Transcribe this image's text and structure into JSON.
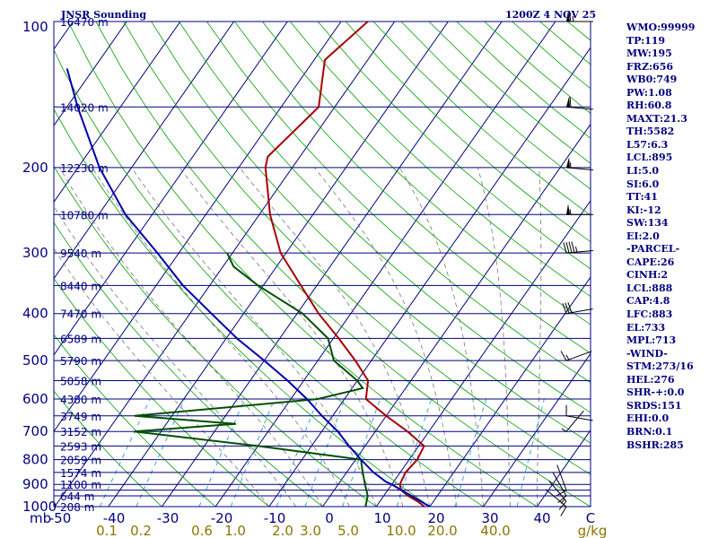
{
  "header": {
    "title": "JNSR Sounding",
    "valid": "1200Z  4 NOV 25"
  },
  "chart_data": {
    "type": "skew-t",
    "title": "JNSR Sounding",
    "valid_time": "1200Z  4 NOV 25",
    "x_unit": "mb",
    "pressure_range": [
      100,
      1000
    ],
    "temperature_range": [
      -50,
      50
    ],
    "pressure_ticks": [
      100,
      200,
      300,
      400,
      500,
      600,
      700,
      800,
      900,
      1000
    ],
    "isobars": [
      100,
      150,
      200,
      250,
      300,
      350,
      400,
      450,
      500,
      550,
      600,
      650,
      700,
      750,
      800,
      850,
      900,
      925,
      950,
      1000
    ],
    "height_labels": [
      {
        "p": 100,
        "label": "16470 m"
      },
      {
        "p": 150,
        "label": "14020 m"
      },
      {
        "p": 200,
        "label": "12230 m"
      },
      {
        "p": 250,
        "label": "10780 m"
      },
      {
        "p": 300,
        "label": "9540 m"
      },
      {
        "p": 350,
        "label": "8440 m"
      },
      {
        "p": 400,
        "label": "7470 m"
      },
      {
        "p": 450,
        "label": "6589 m"
      },
      {
        "p": 500,
        "label": "5790 m"
      },
      {
        "p": 550,
        "label": "5058 m"
      },
      {
        "p": 600,
        "label": "4380 m"
      },
      {
        "p": 650,
        "label": "3749 m"
      },
      {
        "p": 700,
        "label": "3152 m"
      },
      {
        "p": 750,
        "label": "2593 m"
      },
      {
        "p": 800,
        "label": "2059 m"
      },
      {
        "p": 850,
        "label": "1574 m"
      },
      {
        "p": 900,
        "label": "1100 m"
      },
      {
        "p": 950,
        "label": "644 m"
      },
      {
        "p": 1000,
        "label": "208 m"
      }
    ],
    "temperature_ticks": [
      "-50",
      "-40",
      "-30",
      "-20",
      "-10",
      "0",
      "10",
      "20",
      "30",
      "40",
      "C"
    ],
    "mixing_ratio_ticks": [
      "0.1",
      "0.2",
      "0.6",
      "1.0",
      "2.0",
      "3.0",
      "5.0",
      "10.0",
      "20.0",
      "40.0",
      "g/kg"
    ],
    "mixing_ratios": [
      0.1,
      0.2,
      0.6,
      1.0,
      2.0,
      3.0,
      5.0,
      10.0,
      20.0,
      40.0
    ],
    "series": [
      {
        "name": "Temperature",
        "color": "#aa0000",
        "points": [
          {
            "p": 1000,
            "t": 19
          },
          {
            "p": 975,
            "t": 17
          },
          {
            "p": 950,
            "t": 14.5
          },
          {
            "p": 925,
            "t": 12.5
          },
          {
            "p": 900,
            "t": 11.5
          },
          {
            "p": 850,
            "t": 11
          },
          {
            "p": 800,
            "t": 11.5
          },
          {
            "p": 750,
            "t": 11
          },
          {
            "p": 700,
            "t": 6
          },
          {
            "p": 650,
            "t": 0
          },
          {
            "p": 600,
            "t": -6
          },
          {
            "p": 550,
            "t": -8
          },
          {
            "p": 500,
            "t": -13
          },
          {
            "p": 450,
            "t": -19
          },
          {
            "p": 400,
            "t": -26
          },
          {
            "p": 350,
            "t": -33
          },
          {
            "p": 300,
            "t": -41
          },
          {
            "p": 250,
            "t": -48
          },
          {
            "p": 200,
            "t": -55
          },
          {
            "p": 190,
            "t": -56
          },
          {
            "p": 150,
            "t": -53
          },
          {
            "p": 120,
            "t": -58
          },
          {
            "p": 100,
            "t": -55
          }
        ]
      },
      {
        "name": "Dewpoint",
        "color": "#005000",
        "points": [
          {
            "p": 1000,
            "t": 8
          },
          {
            "p": 950,
            "t": 7
          },
          {
            "p": 900,
            "t": 5
          },
          {
            "p": 850,
            "t": 3
          },
          {
            "p": 800,
            "t": 1
          },
          {
            "p": 750,
            "t": -20
          },
          {
            "p": 700,
            "t": -45
          },
          {
            "p": 675,
            "t": -27
          },
          {
            "p": 650,
            "t": -47
          },
          {
            "p": 600,
            "t": -15
          },
          {
            "p": 570,
            "t": -8
          },
          {
            "p": 550,
            "t": -10
          },
          {
            "p": 500,
            "t": -17
          },
          {
            "p": 450,
            "t": -21
          },
          {
            "p": 400,
            "t": -29
          },
          {
            "p": 350,
            "t": -41
          },
          {
            "p": 320,
            "t": -48
          },
          {
            "p": 300,
            "t": -51
          }
        ]
      },
      {
        "name": "Parcel",
        "color": "#0000aa",
        "points": [
          {
            "p": 1000,
            "t": 20
          },
          {
            "p": 900,
            "t": 10
          },
          {
            "p": 888,
            "t": 8.5
          },
          {
            "p": 850,
            "t": 5
          },
          {
            "p": 800,
            "t": 1
          },
          {
            "p": 750,
            "t": -3
          },
          {
            "p": 700,
            "t": -7
          },
          {
            "p": 650,
            "t": -12
          },
          {
            "p": 600,
            "t": -17
          },
          {
            "p": 550,
            "t": -23
          },
          {
            "p": 500,
            "t": -30
          },
          {
            "p": 450,
            "t": -38
          },
          {
            "p": 400,
            "t": -46
          },
          {
            "p": 350,
            "t": -55
          },
          {
            "p": 300,
            "t": -64
          },
          {
            "p": 250,
            "t": -75
          },
          {
            "p": 200,
            "t": -86
          },
          {
            "p": 150,
            "t": -98
          },
          {
            "p": 125,
            "t": -105
          }
        ]
      }
    ],
    "wind_barbs": [
      {
        "p": 100,
        "dir": 270,
        "spd": 65
      },
      {
        "p": 150,
        "dir": 275,
        "spd": 60
      },
      {
        "p": 200,
        "dir": 275,
        "spd": 55
      },
      {
        "p": 250,
        "dir": 270,
        "spd": 55
      },
      {
        "p": 300,
        "dir": 265,
        "spd": 45
      },
      {
        "p": 400,
        "dir": 260,
        "spd": 30
      },
      {
        "p": 500,
        "dir": 250,
        "spd": 15
      },
      {
        "p": 650,
        "dir": 280,
        "spd": 10
      },
      {
        "p": 700,
        "dir": 220,
        "spd": 5
      },
      {
        "p": 925,
        "dir": 160,
        "spd": 10
      },
      {
        "p": 950,
        "dir": 150,
        "spd": 10
      },
      {
        "p": 975,
        "dir": 140,
        "spd": 15
      },
      {
        "p": 1000,
        "dir": 130,
        "spd": 10
      }
    ]
  },
  "indices": [
    "WMO:99999",
    "TP:119",
    "MW:195",
    "FRZ:656",
    "WB0:749",
    "PW:1.08",
    "RH:60.8",
    "MAXT:21.3",
    "TH:5582",
    "L57:6.3",
    "LCL:895",
    "LI:5.0",
    "SI:6.0",
    "TT:41",
    "KI:-12",
    "SW:134",
    "EI:2.0",
    "-PARCEL-",
    "CAPE:26",
    "CINH:2",
    "LCL:888",
    "CAP:4.8",
    "LFC:883",
    "EL:733",
    "MPL:713",
    "-WIND-",
    "STM:273/16",
    "HEL:276",
    "SHR-+:0.0",
    "SRDS:151",
    "EHI:0.0",
    "BRN:0.1",
    "BSHR:285"
  ]
}
